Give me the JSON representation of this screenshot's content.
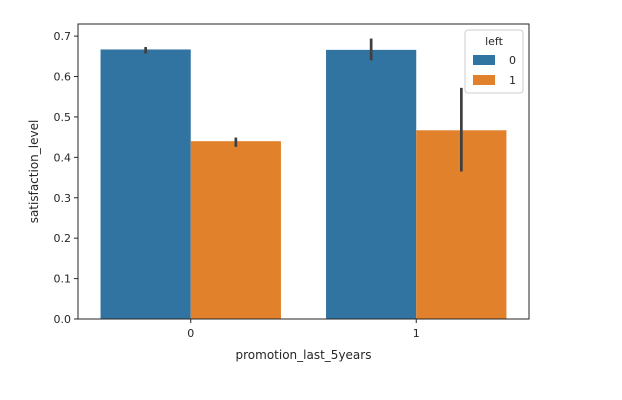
{
  "chart_data": {
    "type": "bar",
    "title": "",
    "xlabel": "promotion_last_5years",
    "ylabel": "satisfaction_level",
    "categories": [
      "0",
      "1"
    ],
    "ylim": [
      0,
      0.73
    ],
    "yticks": [
      "0.0",
      "0.1",
      "0.2",
      "0.3",
      "0.4",
      "0.5",
      "0.6",
      "0.7"
    ],
    "grid": false,
    "legend": {
      "title": "left",
      "placement": "top-right"
    },
    "series": [
      {
        "name": "0",
        "color": "#3274a1",
        "values": [
          0.667,
          0.666
        ],
        "ci": [
          [
            0.657,
            0.673
          ],
          [
            0.64,
            0.694
          ]
        ]
      },
      {
        "name": "1",
        "color": "#e1812c",
        "values": [
          0.44,
          0.467
        ],
        "ci": [
          [
            0.426,
            0.449
          ],
          [
            0.365,
            0.572
          ]
        ]
      }
    ],
    "errorbar_color": "#3f3f3f"
  }
}
